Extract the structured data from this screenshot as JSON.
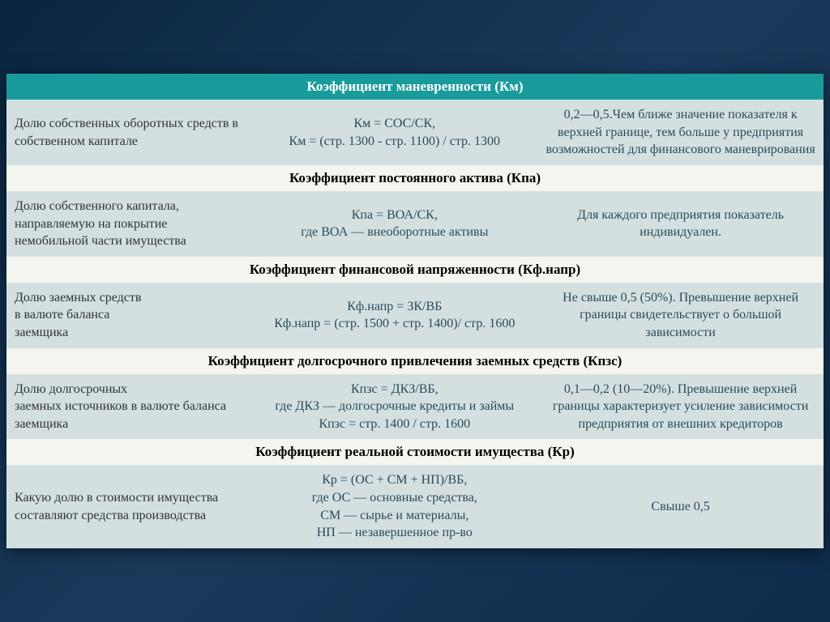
{
  "colors": {
    "page_bg_gradient_start": "#0a2540",
    "page_bg_gradient_mid": "#1a3a5c",
    "page_bg_gradient_end": "#0d2b4a",
    "header_bg": "#1a9b9b",
    "header_text": "#ffffff",
    "section_bg": "#f5f5f0",
    "section_text": "#000000",
    "data_bg": "#d4e0e0",
    "data_text": "#333333",
    "data_text_alt": "#2a4a5a"
  },
  "typography": {
    "font_family": "Times New Roman",
    "header_fontsize": 17,
    "section_fontsize": 17,
    "data_fontsize": 16
  },
  "layout": {
    "col1_width_pct": 30,
    "col2_width_pct": 35,
    "col3_width_pct": 35
  },
  "sections": [
    {
      "title": "Коэффициент маневренности (Км)",
      "is_main_header": true,
      "col1": "Долю собственных оборотных средств в собственном капитале",
      "col2": "Км = СОС/СК,\nКм = (стр. 1300 - стр. 1100) / стр. 1300",
      "col3": "0,2—0,5.Чем ближе значение показателя  к верхней границе, тем больше  у предприятия возможностей для финансового маневрирования"
    },
    {
      "title": "Коэффициент постоянного актива (Кпа)",
      "is_main_header": false,
      "col1": "Долю собственного капитала, направляемую на покрытие немобильной части имущества",
      "col2": "Кпа = ВОА/СК,\nгде ВОА — внеоборотные активы",
      "col3": "Для каждого предприятия показатель\nиндивидуален."
    },
    {
      "title": "Коэффициент финансовой напряженности (Кф.напр)",
      "is_main_header": false,
      "col1": "Долю заемных средств\nв валюте баланса\nзаемщика",
      "col2": "Кф.напр = ЗК/ВБ\nКф.напр = (стр. 1500 + стр. 1400)/ стр. 1600",
      "col3": "Не свыше 0,5 (50%). Превышение верхней  границы свидетельствует о большой  зависимости"
    },
    {
      "title": "Коэффициент долгосрочного привлечения заемных средств (Кпзс)",
      "is_main_header": false,
      "col1": "Долю долгосрочных\nзаемных источников в валюте баланса заемщика",
      "col2": "Кпзс = ДКЗ/ВБ,\nгде ДКЗ — долгосрочные кредиты и займы\nКпзс = стр. 1400 / стр. 1600",
      "col3": "0,1—0,2 (10—20%). Превышение верхней границы характеризует усиление  зависимости предприятия от внешних кредиторов"
    },
    {
      "title": "Коэффициент реальной стоимости имущества (Кр)",
      "is_main_header": false,
      "col1": "Какую долю в стоимости имущества составляют средства производства",
      "col2": "Кр = (ОС + СМ + НП)/ВБ,\nгде ОС — основные средства,\nСМ — сырье и материалы,\nНП — незавершенное пр-во",
      "col3": "Свыше 0,5"
    }
  ]
}
